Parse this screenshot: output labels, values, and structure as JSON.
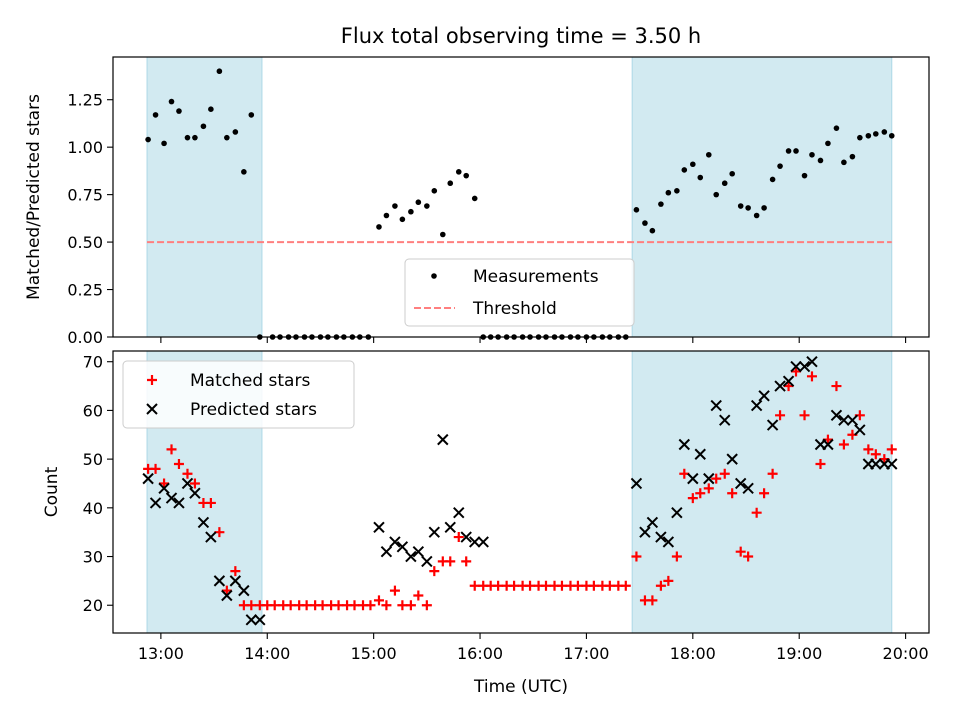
{
  "figure": {
    "title": "Flux total observing time = 3.50 h",
    "xlabel": "Time (UTC)"
  },
  "colors": {
    "shade": "#add8e6",
    "measurement": "#000000",
    "threshold": "#ff7f7f",
    "matched": "#ff0000",
    "predicted": "#000000"
  },
  "chart_data": [
    {
      "type": "scatter",
      "ylabel": "Matched/Predicted stars",
      "x_unit": "hours UTC",
      "xlim": [
        12.55,
        20.22
      ],
      "ylim": [
        0,
        1.475
      ],
      "yticks": [
        0.0,
        0.25,
        0.5,
        0.75,
        1.0,
        1.25
      ],
      "ytick_labels": [
        "0.00",
        "0.25",
        "0.50",
        "0.75",
        "1.00",
        "1.25"
      ],
      "shaded_intervals": [
        [
          12.87,
          13.95
        ],
        [
          17.43,
          19.87
        ]
      ],
      "threshold": 0.5,
      "threshold_x": [
        12.87,
        19.87
      ],
      "legend": {
        "location": "bottom-center",
        "entries": [
          "Measurements",
          "Threshold"
        ]
      },
      "series": [
        {
          "name": "Measurements",
          "x": [
            12.88,
            12.95,
            13.03,
            13.1,
            13.17,
            13.25,
            13.32,
            13.4,
            13.47,
            13.55,
            13.62,
            13.7,
            13.78,
            13.85,
            13.93,
            14.05,
            14.12,
            14.2,
            14.27,
            14.35,
            14.42,
            14.5,
            14.57,
            14.65,
            14.72,
            14.8,
            14.87,
            14.95,
            15.05,
            15.12,
            15.2,
            15.27,
            15.35,
            15.42,
            15.5,
            15.57,
            15.65,
            15.72,
            15.8,
            15.87,
            15.95,
            16.03,
            16.1,
            16.17,
            16.25,
            16.32,
            16.4,
            16.47,
            16.55,
            16.62,
            16.7,
            16.77,
            16.85,
            16.92,
            17.0,
            17.07,
            17.15,
            17.22,
            17.3,
            17.37,
            17.47,
            17.55,
            17.62,
            17.7,
            17.77,
            17.85,
            17.92,
            18.0,
            18.07,
            18.15,
            18.22,
            18.3,
            18.37,
            18.45,
            18.52,
            18.6,
            18.67,
            18.75,
            18.82,
            18.9,
            18.97,
            19.05,
            19.12,
            19.2,
            19.27,
            19.35,
            19.42,
            19.5,
            19.57,
            19.65,
            19.72,
            19.8,
            19.87
          ],
          "y": [
            1.04,
            1.17,
            1.02,
            1.24,
            1.19,
            1.05,
            1.05,
            1.11,
            1.2,
            1.4,
            1.05,
            1.08,
            0.87,
            1.17,
            0.0,
            0.0,
            0.0,
            0.0,
            0.0,
            0.0,
            0.0,
            0.0,
            0.0,
            0.0,
            0.0,
            0.0,
            0.0,
            0.0,
            0.58,
            0.64,
            0.69,
            0.62,
            0.66,
            0.71,
            0.69,
            0.77,
            0.54,
            0.81,
            0.87,
            0.85,
            0.73,
            0.0,
            0.0,
            0.0,
            0.0,
            0.0,
            0.0,
            0.0,
            0.0,
            0.0,
            0.0,
            0.0,
            0.0,
            0.0,
            0.0,
            0.0,
            0.0,
            0.0,
            0.0,
            0.0,
            0.67,
            0.6,
            0.56,
            0.7,
            0.76,
            0.77,
            0.88,
            0.91,
            0.84,
            0.96,
            0.75,
            0.81,
            0.86,
            0.69,
            0.68,
            0.64,
            0.68,
            0.83,
            0.9,
            0.98,
            0.98,
            0.85,
            0.96,
            0.93,
            1.02,
            1.1,
            0.92,
            0.95,
            1.05,
            1.06,
            1.07,
            1.08,
            1.06
          ]
        }
      ]
    },
    {
      "type": "scatter",
      "ylabel": "Count",
      "x_unit": "hours UTC",
      "xlim": [
        12.55,
        20.22
      ],
      "ylim": [
        14.3,
        72.2
      ],
      "yticks": [
        20,
        30,
        40,
        50,
        60,
        70
      ],
      "ytick_labels": [
        "20",
        "30",
        "40",
        "50",
        "60",
        "70"
      ],
      "xticks": [
        13,
        14,
        15,
        16,
        17,
        18,
        19,
        20
      ],
      "xtick_labels": [
        "13:00",
        "14:00",
        "15:00",
        "16:00",
        "17:00",
        "18:00",
        "19:00",
        "20:00"
      ],
      "shaded_intervals": [
        [
          12.87,
          13.95
        ],
        [
          17.43,
          19.87
        ]
      ],
      "legend": {
        "location": "top-left",
        "entries": [
          "Matched stars",
          "Predicted stars"
        ]
      },
      "series": [
        {
          "name": "Matched stars",
          "marker": "plus",
          "x": [
            12.88,
            12.95,
            13.03,
            13.1,
            13.17,
            13.25,
            13.32,
            13.4,
            13.47,
            13.55,
            13.62,
            13.7,
            13.78,
            13.85,
            13.93,
            14.0,
            14.07,
            14.15,
            14.22,
            14.3,
            14.37,
            14.45,
            14.52,
            14.6,
            14.67,
            14.75,
            14.82,
            14.9,
            14.97,
            15.05,
            15.12,
            15.2,
            15.27,
            15.35,
            15.42,
            15.5,
            15.57,
            15.65,
            15.72,
            15.8,
            15.87,
            15.95,
            16.03,
            16.1,
            16.17,
            16.25,
            16.32,
            16.4,
            16.47,
            16.55,
            16.62,
            16.7,
            16.77,
            16.85,
            16.92,
            17.0,
            17.07,
            17.15,
            17.22,
            17.3,
            17.37,
            17.47,
            17.55,
            17.62,
            17.7,
            17.77,
            17.85,
            17.92,
            18.0,
            18.07,
            18.15,
            18.22,
            18.3,
            18.37,
            18.45,
            18.52,
            18.6,
            18.67,
            18.75,
            18.82,
            18.9,
            18.97,
            19.05,
            19.12,
            19.2,
            19.27,
            19.35,
            19.42,
            19.5,
            19.57,
            19.65,
            19.72,
            19.8,
            19.87
          ],
          "y": [
            48,
            48,
            45,
            52,
            49,
            47,
            45,
            41,
            41,
            35,
            23,
            27,
            20,
            20,
            20,
            20,
            20,
            20,
            20,
            20,
            20,
            20,
            20,
            20,
            20,
            20,
            20,
            20,
            20,
            21,
            20,
            23,
            20,
            20,
            22,
            20,
            27,
            29,
            29,
            34,
            29,
            24,
            24,
            24,
            24,
            24,
            24,
            24,
            24,
            24,
            24,
            24,
            24,
            24,
            24,
            24,
            24,
            24,
            24,
            24,
            24,
            30,
            21,
            21,
            24,
            25,
            30,
            47,
            42,
            43,
            44,
            46,
            47,
            43,
            31,
            30,
            39,
            43,
            47,
            59,
            65,
            68,
            59,
            67,
            49,
            54,
            65,
            53,
            55,
            59,
            52,
            51,
            50,
            52
          ]
        },
        {
          "name": "Predicted stars",
          "marker": "x",
          "x": [
            12.88,
            12.95,
            13.03,
            13.1,
            13.17,
            13.25,
            13.32,
            13.4,
            13.47,
            13.55,
            13.62,
            13.7,
            13.78,
            13.85,
            13.93,
            15.05,
            15.12,
            15.2,
            15.27,
            15.35,
            15.42,
            15.5,
            15.57,
            15.65,
            15.72,
            15.8,
            15.87,
            15.95,
            16.03,
            17.47,
            17.55,
            17.62,
            17.7,
            17.77,
            17.85,
            17.92,
            18.0,
            18.07,
            18.15,
            18.22,
            18.3,
            18.37,
            18.45,
            18.52,
            18.6,
            18.67,
            18.75,
            18.82,
            18.9,
            18.97,
            19.05,
            19.12,
            19.2,
            19.27,
            19.35,
            19.42,
            19.5,
            19.57,
            19.65,
            19.72,
            19.8,
            19.87
          ],
          "y": [
            46,
            41,
            44,
            42,
            41,
            45,
            43,
            37,
            34,
            25,
            22,
            25,
            23,
            17,
            17,
            36,
            31,
            33,
            32,
            30,
            31,
            29,
            35,
            54,
            36,
            39,
            34,
            33,
            33,
            45,
            35,
            37,
            34,
            33,
            39,
            53,
            46,
            51,
            46,
            61,
            58,
            50,
            45,
            44,
            61,
            63,
            57,
            65,
            66,
            69,
            69,
            70,
            53,
            53,
            59,
            58,
            58,
            56,
            49,
            49,
            49,
            49
          ]
        }
      ]
    }
  ]
}
